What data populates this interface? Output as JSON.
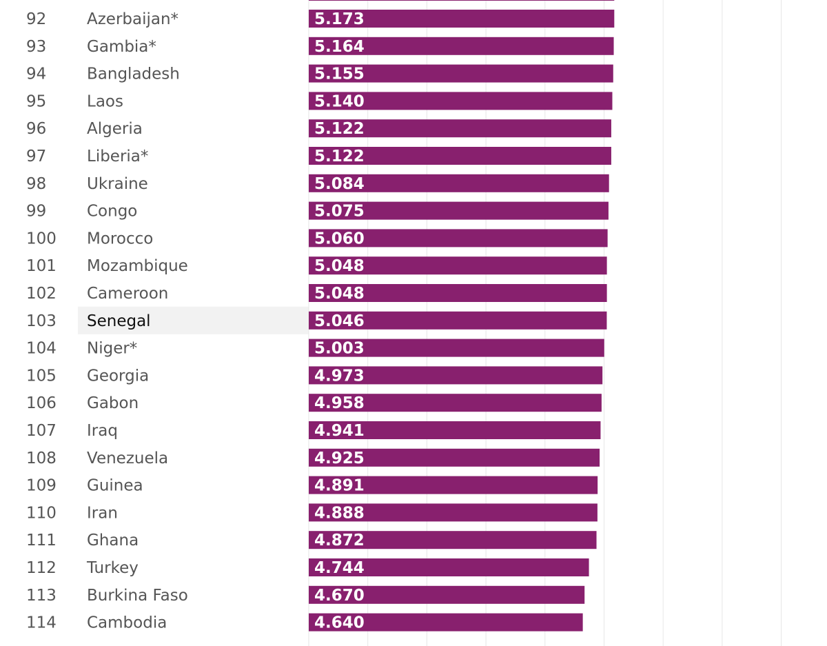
{
  "chart_data": {
    "type": "bar",
    "orientation": "horizontal",
    "categories": [
      "Azerbaijan*",
      "Gambia*",
      "Bangladesh",
      "Laos",
      "Algeria",
      "Liberia*",
      "Ukraine",
      "Congo",
      "Morocco",
      "Mozambique",
      "Cameroon",
      "Senegal",
      "Niger*",
      "Georgia",
      "Gabon",
      "Iraq",
      "Venezuela",
      "Guinea",
      "Iran",
      "Ghana",
      "Turkey",
      "Burkina Faso",
      "Cambodia"
    ],
    "ranks": [
      "92",
      "93",
      "94",
      "95",
      "96",
      "97",
      "98",
      "99",
      "100",
      "101",
      "102",
      "103",
      "104",
      "105",
      "106",
      "107",
      "108",
      "109",
      "110",
      "111",
      "112",
      "113",
      "114"
    ],
    "values": [
      5.173,
      5.164,
      5.155,
      5.14,
      5.122,
      5.122,
      5.084,
      5.075,
      5.06,
      5.048,
      5.048,
      5.046,
      5.003,
      4.973,
      4.958,
      4.941,
      4.925,
      4.891,
      4.888,
      4.872,
      4.744,
      4.67,
      4.64
    ],
    "value_labels": [
      "5.173",
      "5.164",
      "5.155",
      "5.140",
      "5.122",
      "5.122",
      "5.084",
      "5.075",
      "5.060",
      "5.048",
      "5.048",
      "5.046",
      "5.003",
      "4.973",
      "4.958",
      "4.941",
      "4.925",
      "4.891",
      "4.888",
      "4.872",
      "4.744",
      "4.670",
      "4.640"
    ],
    "highlighted_category": "Senegal",
    "xlim": [
      0,
      8
    ],
    "x_gridline_step": 1,
    "grid": true,
    "bar_color": "#88206e",
    "highlight_row_color": "#f2f2f2",
    "gridline_color": "#e6e6e6",
    "value_label_color": "#ffffff"
  }
}
